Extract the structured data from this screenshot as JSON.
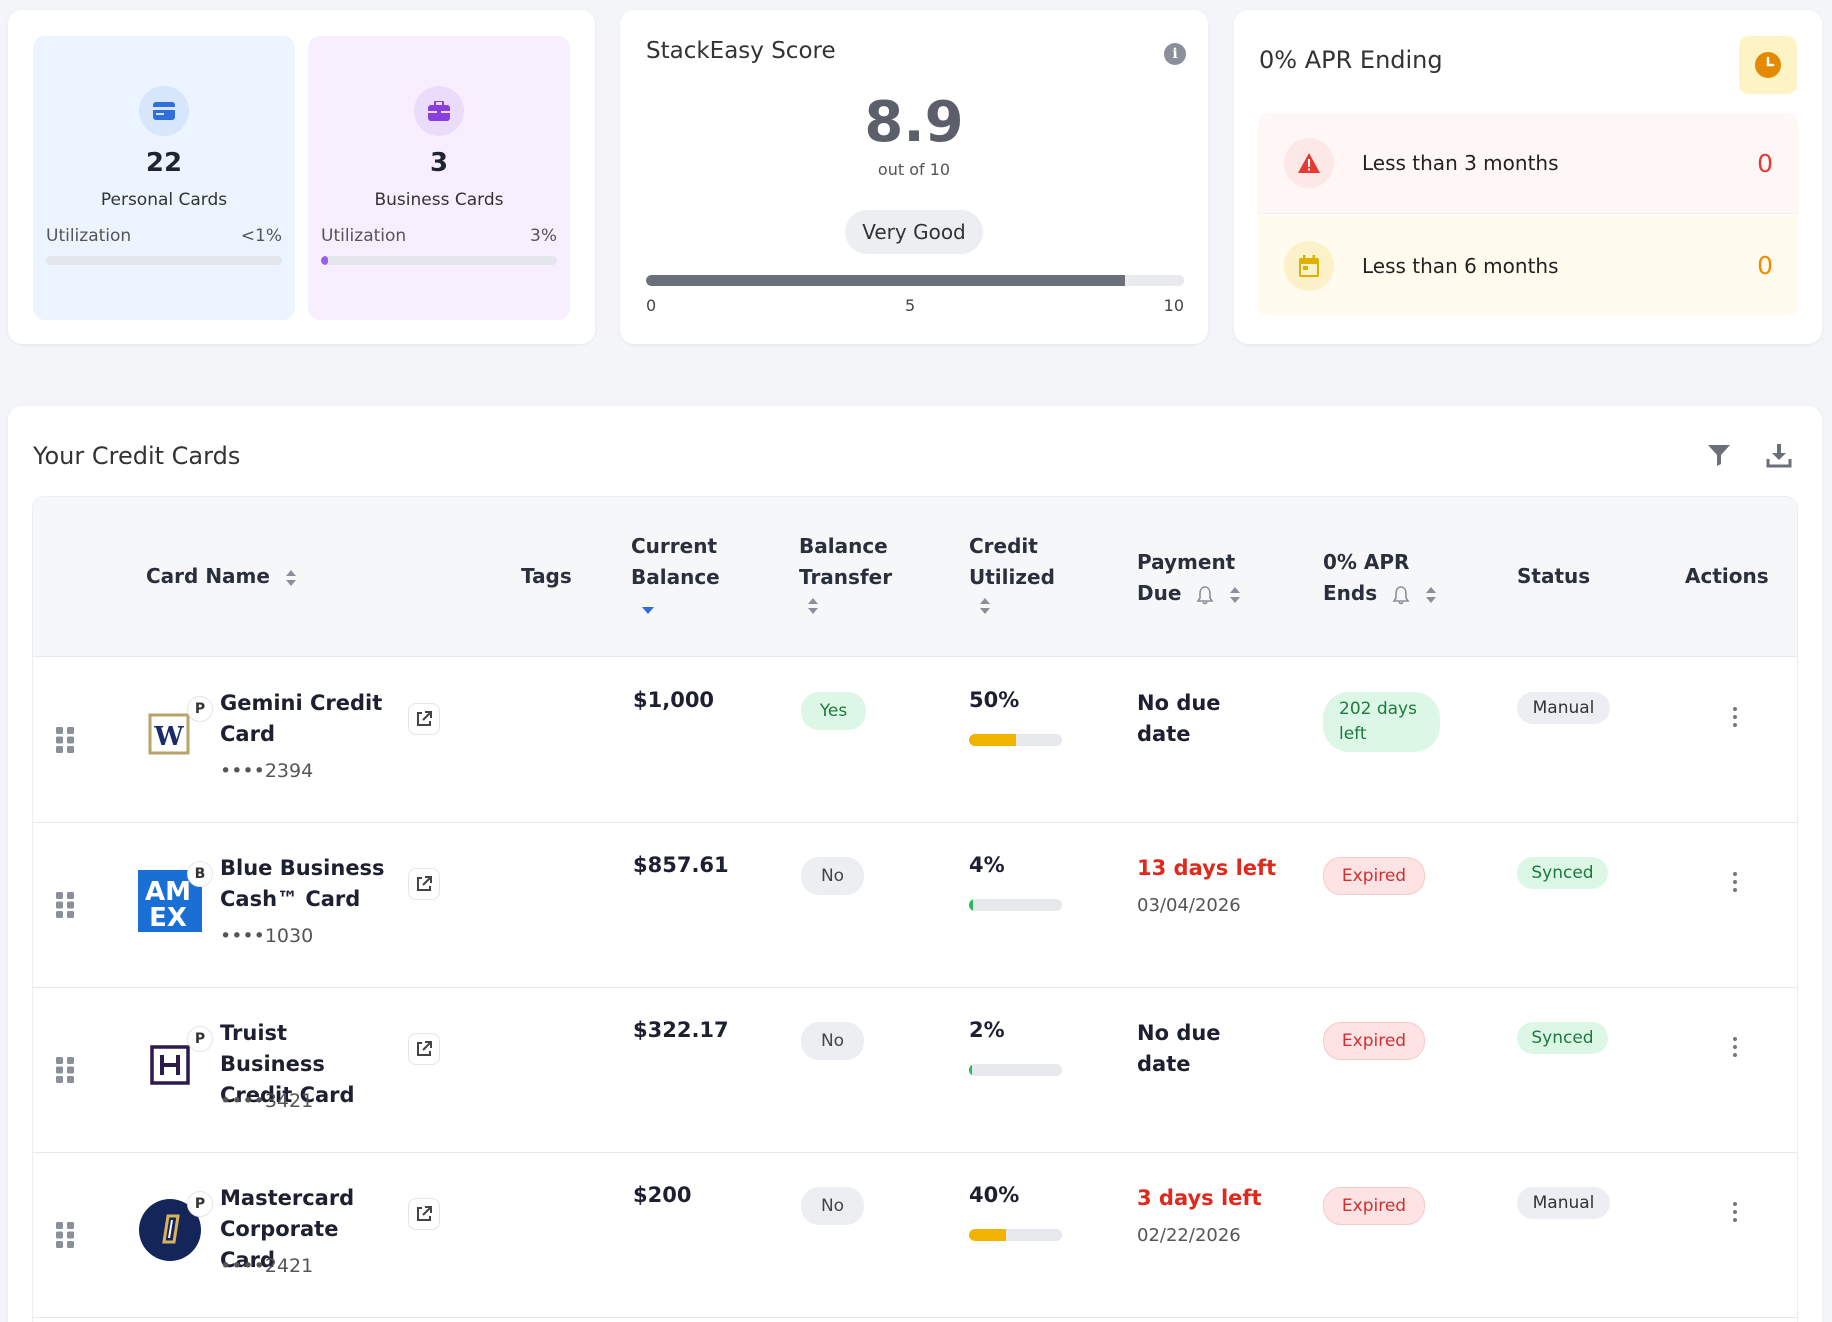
{
  "summary": {
    "personal": {
      "count": "22",
      "label": "Personal Cards",
      "util_label": "Utilization",
      "util_value": "<1%",
      "util_fraction": 0.0,
      "color": "#cfd6de"
    },
    "business": {
      "count": "3",
      "label": "Business Cards",
      "util_label": "Utilization",
      "util_value": "3%",
      "util_fraction": 0.03,
      "color": "#9b5de5"
    }
  },
  "score": {
    "title": "StackEasy Score",
    "value": "8.9",
    "out_of": "out of 10",
    "rating": "Very Good",
    "fraction": 0.89,
    "ticks": [
      "0",
      "5",
      "10"
    ]
  },
  "apr": {
    "title": "0% APR Ending",
    "rows": [
      {
        "label": "Less than 3 months",
        "count": "0"
      },
      {
        "label": "Less than 6 months",
        "count": "0"
      }
    ]
  },
  "cards_section": {
    "title": "Your Credit Cards",
    "headers": {
      "card_name": "Card Name",
      "tags": "Tags",
      "current_balance": [
        "Current",
        "Balance"
      ],
      "balance_transfer": [
        "Balance",
        "Transfer"
      ],
      "credit_utilized": [
        "Credit",
        "Utilized"
      ],
      "payment_due": [
        "Payment",
        "Due"
      ],
      "apr_ends": [
        "0% APR",
        "Ends"
      ],
      "status": "Status",
      "actions": "Actions"
    },
    "rows": [
      {
        "name": "Gemini Credit Card",
        "type_badge": "P",
        "number": "••••2394",
        "balance": "$1,000",
        "balance_transfer": "Yes",
        "utilized": "50%",
        "util_fraction": 0.5,
        "util_color": "#f0b400",
        "payment_due": "No due date",
        "payment_date": "",
        "apr_ends": "202 days left",
        "status": "Manual"
      },
      {
        "name": "Blue Business Cash™ Card",
        "type_badge": "B",
        "number": "••••1030",
        "balance": "$857.61",
        "balance_transfer": "No",
        "utilized": "4%",
        "util_fraction": 0.04,
        "util_color": "#2eb85c",
        "payment_due": "13 days left",
        "payment_date": "03/04/2026",
        "apr_ends": "Expired",
        "status": "Synced"
      },
      {
        "name": "Truist Business Credit Card",
        "type_badge": "P",
        "number": "••••3421",
        "balance": "$322.17",
        "balance_transfer": "No",
        "utilized": "2%",
        "util_fraction": 0.02,
        "util_color": "#2eb85c",
        "payment_due": "No due date",
        "payment_date": "",
        "apr_ends": "Expired",
        "status": "Synced"
      },
      {
        "name": "Mastercard Corporate Card",
        "type_badge": "P",
        "number": "••••2421",
        "balance": "$200",
        "balance_transfer": "No",
        "utilized": "40%",
        "util_fraction": 0.4,
        "util_color": "#f0b400",
        "payment_due": "3 days left",
        "payment_date": "02/22/2026",
        "apr_ends": "Expired",
        "status": "Manual"
      }
    ]
  },
  "colors": {
    "alert_red": "#e0291d",
    "warning_orange": "#f08c00",
    "synced_green": "#1d7a3e"
  }
}
